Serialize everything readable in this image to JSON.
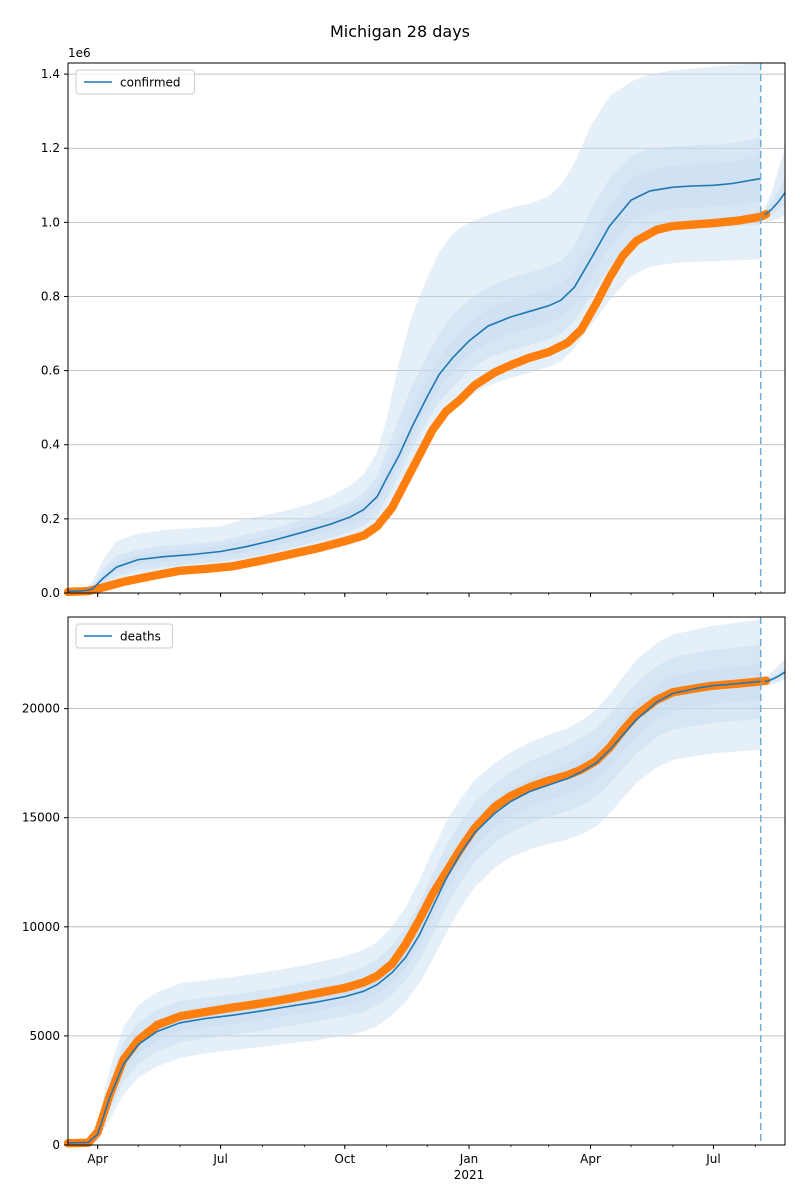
{
  "title": "Michigan 28 days",
  "x_axis": {
    "tick_labels": [
      "Apr",
      "Jul",
      "Oct",
      "Jan",
      "Apr",
      "Jul"
    ],
    "tick_dates": [
      "2020-04-01",
      "2020-07-01",
      "2020-10-01",
      "2021-01-01",
      "2021-04-01",
      "2021-07-01"
    ],
    "year_label": "2021",
    "range": [
      "2020-03-10",
      "2021-08-23"
    ]
  },
  "forecast_start": "2021-08-05",
  "colors": {
    "model_line": "#1f77b4",
    "observed": "#ff7f0e",
    "band": "#c6dbef",
    "grid": "#b0b0b0",
    "forecast_marker": "#6baed6"
  },
  "chart_data": [
    {
      "type": "line",
      "name": "confirmed",
      "legend": "confirmed",
      "legend_position": "upper-left",
      "grid": "horizontal",
      "ylim": [
        0,
        1430000
      ],
      "yticks": [
        0,
        200000,
        400000,
        600000,
        800000,
        1000000,
        1200000,
        1400000
      ],
      "ytick_labels": [
        "0.0",
        "0.2",
        "0.4",
        "0.6",
        "0.8",
        "1.0",
        "1.2",
        "1.4"
      ],
      "offset_label": "1e6",
      "model": {
        "x": [
          "2020-03-10",
          "2020-03-20",
          "2020-03-28",
          "2020-04-05",
          "2020-04-15",
          "2020-05-01",
          "2020-05-20",
          "2020-06-10",
          "2020-07-01",
          "2020-07-20",
          "2020-08-10",
          "2020-09-01",
          "2020-09-20",
          "2020-10-05",
          "2020-10-15",
          "2020-10-25",
          "2020-11-01",
          "2020-11-10",
          "2020-11-20",
          "2020-12-01",
          "2020-12-10",
          "2020-12-20",
          "2021-01-01",
          "2021-01-15",
          "2021-02-01",
          "2021-02-15",
          "2021-03-01",
          "2021-03-10",
          "2021-03-20",
          "2021-04-01",
          "2021-04-15",
          "2021-05-01",
          "2021-05-15",
          "2021-06-01",
          "2021-06-15",
          "2021-07-01",
          "2021-07-15",
          "2021-08-05"
        ],
        "y": [
          5000,
          5000,
          10000,
          40000,
          70000,
          90000,
          98000,
          104000,
          112000,
          125000,
          143000,
          165000,
          185000,
          205000,
          225000,
          260000,
          310000,
          370000,
          450000,
          530000,
          590000,
          635000,
          680000,
          720000,
          745000,
          760000,
          775000,
          790000,
          825000,
          900000,
          990000,
          1060000,
          1085000,
          1095000,
          1098000,
          1100000,
          1105000,
          1118000
        ]
      },
      "model_forecast": {
        "x": [
          "2021-08-08",
          "2021-08-13",
          "2021-08-18",
          "2021-08-23"
        ],
        "y": [
          1020000,
          1035000,
          1055000,
          1080000
        ]
      },
      "observed": {
        "x": [
          "2020-03-10",
          "2020-03-25",
          "2020-04-05",
          "2020-04-20",
          "2020-05-10",
          "2020-06-01",
          "2020-06-20",
          "2020-07-10",
          "2020-08-01",
          "2020-08-20",
          "2020-09-10",
          "2020-10-01",
          "2020-10-15",
          "2020-10-25",
          "2020-11-05",
          "2020-11-15",
          "2020-11-25",
          "2020-12-05",
          "2020-12-15",
          "2020-12-25",
          "2021-01-05",
          "2021-01-20",
          "2021-02-01",
          "2021-02-15",
          "2021-03-01",
          "2021-03-15",
          "2021-03-25",
          "2021-04-05",
          "2021-04-15",
          "2021-04-25",
          "2021-05-05",
          "2021-05-20",
          "2021-06-01",
          "2021-06-20",
          "2021-07-01",
          "2021-07-20",
          "2021-08-05",
          "2021-08-09"
        ],
        "y": [
          3000,
          5000,
          15000,
          30000,
          45000,
          60000,
          65000,
          72000,
          88000,
          103000,
          120000,
          140000,
          155000,
          180000,
          230000,
          300000,
          370000,
          440000,
          490000,
          520000,
          560000,
          595000,
          615000,
          635000,
          650000,
          675000,
          710000,
          780000,
          850000,
          910000,
          950000,
          980000,
          990000,
          995000,
          998000,
          1005000,
          1015000,
          1022000
        ]
      },
      "bands": [
        {
          "label": "outer",
          "lower": [
            0,
            0,
            0,
            5000,
            25000,
            40000,
            48000,
            55000,
            60000,
            70000,
            85000,
            100000,
            115000,
            130000,
            145000,
            170000,
            205000,
            260000,
            320000,
            400000,
            450000,
            490000,
            530000,
            560000,
            580000,
            595000,
            610000,
            625000,
            660000,
            720000,
            790000,
            855000,
            880000,
            890000,
            893000,
            895000,
            897000,
            900000
          ],
          "upper": [
            8000,
            8000,
            30000,
            90000,
            140000,
            160000,
            170000,
            175000,
            180000,
            200000,
            215000,
            235000,
            260000,
            290000,
            320000,
            380000,
            470000,
            620000,
            750000,
            850000,
            920000,
            970000,
            1000000,
            1020000,
            1040000,
            1050000,
            1070000,
            1100000,
            1160000,
            1260000,
            1340000,
            1380000,
            1400000,
            1410000,
            1415000,
            1420000,
            1425000,
            1430000
          ]
        },
        {
          "label": "middle",
          "lower": [
            2000,
            2000,
            4000,
            20000,
            45000,
            62000,
            70000,
            78000,
            85000,
            95000,
            110000,
            130000,
            148000,
            165000,
            182000,
            210000,
            255000,
            315000,
            390000,
            465000,
            515000,
            555000,
            600000,
            635000,
            655000,
            670000,
            685000,
            700000,
            735000,
            800000,
            880000,
            945000,
            970000,
            980000,
            983000,
            985000,
            988000,
            995000
          ],
          "upper": [
            7000,
            7000,
            18000,
            65000,
            100000,
            118000,
            128000,
            133000,
            140000,
            158000,
            175000,
            200000,
            222000,
            245000,
            270000,
            315000,
            385000,
            470000,
            560000,
            640000,
            700000,
            750000,
            790000,
            825000,
            850000,
            865000,
            880000,
            895000,
            935000,
            1030000,
            1120000,
            1180000,
            1200000,
            1205000,
            1208000,
            1210000,
            1215000,
            1230000
          ]
        },
        {
          "label": "inner",
          "lower": [
            3000,
            3000,
            7000,
            30000,
            58000,
            76000,
            85000,
            91000,
            98000,
            110000,
            127000,
            148000,
            167000,
            185000,
            204000,
            235000,
            283000,
            342000,
            420000,
            498000,
            552000,
            595000,
            640000,
            677000,
            700000,
            715000,
            730000,
            745000,
            780000,
            850000,
            935000,
            1002000,
            1027000,
            1037000,
            1040000,
            1042000,
            1046000,
            1058000
          ],
          "upper": [
            6000,
            6000,
            13000,
            52000,
            84000,
            104000,
            113000,
            119000,
            127000,
            141000,
            160000,
            183000,
            204000,
            226000,
            248000,
            288000,
            345000,
            410000,
            495000,
            575000,
            635000,
            680000,
            725000,
            765000,
            790000,
            805000,
            820000,
            835000,
            870000,
            950000,
            1045000,
            1118000,
            1143000,
            1153000,
            1156000,
            1158000,
            1164000,
            1178000
          ]
        }
      ],
      "forecast_bands": [
        {
          "label": "outer",
          "lower": [
            1000000,
            1005000,
            1010000,
            1020000
          ],
          "upper": [
            1040000,
            1080000,
            1140000,
            1200000
          ]
        },
        {
          "label": "inner",
          "lower": [
            1010000,
            1020000,
            1035000,
            1050000
          ],
          "upper": [
            1030000,
            1055000,
            1085000,
            1120000
          ]
        }
      ]
    },
    {
      "type": "line",
      "name": "deaths",
      "legend": "deaths",
      "legend_position": "upper-left",
      "grid": "horizontal",
      "ylim": [
        0,
        24200
      ],
      "yticks": [
        0,
        5000,
        10000,
        15000,
        20000
      ],
      "ytick_labels": [
        "0",
        "5000",
        "10000",
        "15000",
        "20000"
      ],
      "model": {
        "x": [
          "2020-03-10",
          "2020-03-25",
          "2020-04-01",
          "2020-04-10",
          "2020-04-20",
          "2020-05-01",
          "2020-05-15",
          "2020-06-01",
          "2020-06-20",
          "2020-07-10",
          "2020-08-01",
          "2020-08-20",
          "2020-09-10",
          "2020-10-01",
          "2020-10-15",
          "2020-10-25",
          "2020-11-05",
          "2020-11-15",
          "2020-11-25",
          "2020-12-05",
          "2020-12-15",
          "2020-12-25",
          "2021-01-05",
          "2021-01-20",
          "2021-02-01",
          "2021-02-15",
          "2021-03-01",
          "2021-03-15",
          "2021-03-25",
          "2021-04-05",
          "2021-04-15",
          "2021-04-25",
          "2021-05-05",
          "2021-05-20",
          "2021-06-01",
          "2021-06-20",
          "2021-07-01",
          "2021-07-20",
          "2021-08-05"
        ],
        "y": [
          100,
          120,
          500,
          2200,
          3700,
          4600,
          5200,
          5600,
          5800,
          5950,
          6150,
          6350,
          6550,
          6800,
          7050,
          7350,
          7900,
          8600,
          9600,
          10900,
          12200,
          13300,
          14300,
          15200,
          15750,
          16200,
          16500,
          16800,
          17100,
          17500,
          18100,
          18800,
          19500,
          20300,
          20700,
          20950,
          21050,
          21150,
          21250
        ]
      },
      "model_forecast": {
        "x": [
          "2021-08-08",
          "2021-08-13",
          "2021-08-18",
          "2021-08-23"
        ],
        "y": [
          21230,
          21330,
          21480,
          21680
        ]
      },
      "observed": {
        "x": [
          "2020-03-10",
          "2020-03-25",
          "2020-04-01",
          "2020-04-10",
          "2020-04-20",
          "2020-05-01",
          "2020-05-15",
          "2020-06-01",
          "2020-06-20",
          "2020-07-10",
          "2020-08-01",
          "2020-08-20",
          "2020-09-10",
          "2020-10-01",
          "2020-10-15",
          "2020-10-25",
          "2020-11-05",
          "2020-11-15",
          "2020-11-25",
          "2020-12-05",
          "2020-12-15",
          "2020-12-25",
          "2021-01-05",
          "2021-01-20",
          "2021-02-01",
          "2021-02-15",
          "2021-03-01",
          "2021-03-15",
          "2021-03-25",
          "2021-04-05",
          "2021-04-15",
          "2021-04-25",
          "2021-05-05",
          "2021-05-20",
          "2021-06-01",
          "2021-06-20",
          "2021-07-01",
          "2021-07-20",
          "2021-08-05",
          "2021-08-09"
        ],
        "y": [
          80,
          100,
          600,
          2300,
          3900,
          4800,
          5500,
          5900,
          6100,
          6300,
          6500,
          6700,
          6950,
          7200,
          7450,
          7750,
          8300,
          9200,
          10300,
          11500,
          12500,
          13500,
          14500,
          15500,
          16000,
          16400,
          16700,
          16950,
          17200,
          17600,
          18200,
          19000,
          19700,
          20400,
          20750,
          20950,
          21050,
          21150,
          21250,
          21280
        ]
      },
      "bands": [
        {
          "label": "outer",
          "lower": [
            0,
            0,
            150,
            1200,
            2300,
            3100,
            3600,
            4000,
            4200,
            4350,
            4500,
            4650,
            4800,
            5000,
            5200,
            5450,
            5950,
            6550,
            7400,
            8500,
            9700,
            10800,
            11800,
            12700,
            13200,
            13550,
            13800,
            14000,
            14250,
            14600,
            15200,
            15900,
            16600,
            17300,
            17650,
            17850,
            17950,
            18050,
            18100
          ],
          "upper": [
            200,
            250,
            1000,
            3500,
            5400,
            6400,
            7000,
            7400,
            7550,
            7700,
            7900,
            8100,
            8350,
            8650,
            8950,
            9300,
            10000,
            10900,
            12100,
            13500,
            14800,
            15800,
            16700,
            17500,
            18000,
            18450,
            18800,
            19100,
            19450,
            19950,
            20650,
            21450,
            22250,
            23000,
            23400,
            23650,
            23800,
            23950,
            24100
          ]
        },
        {
          "label": "middle",
          "lower": [
            50,
            70,
            300,
            1600,
            2900,
            3700,
            4300,
            4700,
            4900,
            5050,
            5250,
            5450,
            5650,
            5900,
            6100,
            6400,
            6900,
            7550,
            8450,
            9650,
            10900,
            11950,
            12950,
            13850,
            14350,
            14750,
            15050,
            15300,
            15550,
            15950,
            16550,
            17250,
            17950,
            18700,
            19050,
            19250,
            19350,
            19450,
            19550
          ],
          "upper": [
            150,
            190,
            780,
            2900,
            4700,
            5600,
            6200,
            6600,
            6750,
            6900,
            7100,
            7300,
            7550,
            7850,
            8150,
            8500,
            9150,
            9950,
            11050,
            12400,
            13700,
            14750,
            15700,
            16550,
            17100,
            17600,
            17950,
            18300,
            18650,
            19100,
            19750,
            20450,
            21200,
            21950,
            22350,
            22600,
            22700,
            22800,
            22950
          ]
        },
        {
          "label": "inner",
          "lower": [
            80,
            100,
            420,
            1950,
            3350,
            4200,
            4800,
            5200,
            5400,
            5550,
            5750,
            5950,
            6150,
            6400,
            6620,
            6930,
            7450,
            8120,
            9080,
            10320,
            11580,
            12650,
            13650,
            14550,
            15080,
            15500,
            15800,
            16080,
            16350,
            16740,
            17340,
            18040,
            18740,
            19510,
            19890,
            20120,
            20220,
            20320,
            20420
          ],
          "upper": [
            120,
            140,
            600,
            2500,
            4100,
            5000,
            5600,
            6000,
            6200,
            6350,
            6550,
            6750,
            6970,
            7230,
            7480,
            7790,
            8390,
            9130,
            10170,
            11480,
            12800,
            13900,
            14900,
            15800,
            16350,
            16800,
            17150,
            17500,
            17800,
            18240,
            18870,
            19600,
            20300,
            21090,
            21480,
            21730,
            21830,
            21930,
            22050
          ]
        }
      ],
      "forecast_bands": [
        {
          "label": "outer",
          "lower": [
            21050,
            21100,
            21200,
            21350
          ],
          "upper": [
            21400,
            21650,
            21950,
            22300
          ]
        },
        {
          "label": "inner",
          "lower": [
            21150,
            21230,
            21360,
            21530
          ],
          "upper": [
            21310,
            21450,
            21620,
            21830
          ]
        }
      ]
    }
  ]
}
